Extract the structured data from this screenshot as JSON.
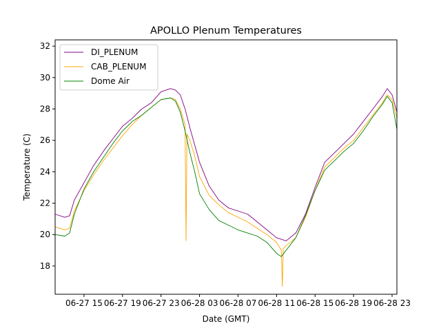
{
  "chart_data": {
    "type": "line",
    "title": "APOLLO Plenum Temperatures",
    "xlabel": "Date (GMT)",
    "ylabel": "Temperature (C)",
    "x_unit": "hours since 06-27 12:00 GMT",
    "xlim": [
      0,
      35.5
    ],
    "ylim": [
      16.2,
      32.4
    ],
    "x_ticks": [
      {
        "value": 3,
        "label": "06-27 15"
      },
      {
        "value": 7,
        "label": "06-27 19"
      },
      {
        "value": 11,
        "label": "06-27 23"
      },
      {
        "value": 15,
        "label": "06-28 03"
      },
      {
        "value": 19,
        "label": "06-28 07"
      },
      {
        "value": 23,
        "label": "06-28 11"
      },
      {
        "value": 27,
        "label": "06-28 15"
      },
      {
        "value": 31,
        "label": "06-28 19"
      },
      {
        "value": 35,
        "label": "06-28 23"
      }
    ],
    "y_ticks": [
      {
        "value": 18,
        "label": "18"
      },
      {
        "value": 20,
        "label": "20"
      },
      {
        "value": 22,
        "label": "22"
      },
      {
        "value": 24,
        "label": "24"
      },
      {
        "value": 26,
        "label": "26"
      },
      {
        "value": 28,
        "label": "28"
      },
      {
        "value": 30,
        "label": "30"
      },
      {
        "value": 32,
        "label": "32"
      }
    ],
    "grid": false,
    "legend_position": "top-left",
    "series": [
      {
        "name": "DI_PLENUM",
        "color": "#800080",
        "points": [
          [
            0,
            21.3
          ],
          [
            1,
            21.1
          ],
          [
            1.5,
            21.2
          ],
          [
            2,
            22.2
          ],
          [
            3,
            23.3
          ],
          [
            4,
            24.4
          ],
          [
            5,
            25.3
          ],
          [
            6,
            26.1
          ],
          [
            7,
            26.9
          ],
          [
            8,
            27.4
          ],
          [
            9,
            28.0
          ],
          [
            10,
            28.4
          ],
          [
            11,
            29.1
          ],
          [
            12,
            29.3
          ],
          [
            12.5,
            29.2
          ],
          [
            13,
            28.9
          ],
          [
            13.5,
            28.0
          ],
          [
            14,
            26.8
          ],
          [
            14.5,
            25.7
          ],
          [
            15,
            24.6
          ],
          [
            16,
            23.1
          ],
          [
            17,
            22.2
          ],
          [
            18,
            21.7
          ],
          [
            19,
            21.5
          ],
          [
            20,
            21.3
          ],
          [
            21,
            20.8
          ],
          [
            22,
            20.3
          ],
          [
            23,
            19.8
          ],
          [
            24,
            19.6
          ],
          [
            25,
            20.1
          ],
          [
            26,
            21.3
          ],
          [
            27,
            23.0
          ],
          [
            28,
            24.6
          ],
          [
            29,
            25.2
          ],
          [
            30,
            25.8
          ],
          [
            31,
            26.4
          ],
          [
            32,
            27.2
          ],
          [
            33,
            28.0
          ],
          [
            34,
            28.8
          ],
          [
            34.5,
            29.3
          ],
          [
            35,
            28.9
          ],
          [
            35.5,
            27.8
          ]
        ]
      },
      {
        "name": "CAB_PLENUM",
        "color": "#ffa500",
        "points": [
          [
            0,
            20.5
          ],
          [
            1,
            20.3
          ],
          [
            1.5,
            20.4
          ],
          [
            2,
            21.5
          ],
          [
            3,
            22.8
          ],
          [
            4,
            23.8
          ],
          [
            5,
            24.7
          ],
          [
            6,
            25.5
          ],
          [
            7,
            26.3
          ],
          [
            8,
            27.0
          ],
          [
            9,
            27.6
          ],
          [
            10,
            28.1
          ],
          [
            11,
            28.6
          ],
          [
            12,
            28.7
          ],
          [
            12.5,
            28.6
          ],
          [
            13,
            28.0
          ],
          [
            13.5,
            27.0
          ],
          [
            13.6,
            19.6
          ],
          [
            13.7,
            26.4
          ],
          [
            14,
            26.0
          ],
          [
            14.5,
            25.0
          ],
          [
            15,
            23.7
          ],
          [
            16,
            22.5
          ],
          [
            17,
            21.9
          ],
          [
            18,
            21.4
          ],
          [
            19,
            21.1
          ],
          [
            20,
            20.8
          ],
          [
            21,
            20.4
          ],
          [
            22,
            20.0
          ],
          [
            23,
            19.5
          ],
          [
            23.5,
            19.0
          ],
          [
            23.6,
            16.7
          ],
          [
            23.7,
            19.1
          ],
          [
            24,
            19.3
          ],
          [
            25,
            19.8
          ],
          [
            26,
            21.1
          ],
          [
            27,
            22.8
          ],
          [
            28,
            24.3
          ],
          [
            29,
            24.9
          ],
          [
            30,
            25.5
          ],
          [
            31,
            26.0
          ],
          [
            32,
            26.8
          ],
          [
            33,
            27.6
          ],
          [
            34,
            28.4
          ],
          [
            34.5,
            28.9
          ],
          [
            35,
            28.6
          ],
          [
            35.5,
            27.4
          ]
        ]
      },
      {
        "name": "Dome Air",
        "color": "#008000",
        "points": [
          [
            0,
            20.0
          ],
          [
            1,
            19.9
          ],
          [
            1.5,
            20.1
          ],
          [
            2,
            21.3
          ],
          [
            3,
            22.9
          ],
          [
            4,
            24.0
          ],
          [
            5,
            24.9
          ],
          [
            6,
            25.8
          ],
          [
            7,
            26.6
          ],
          [
            8,
            27.2
          ],
          [
            9,
            27.6
          ],
          [
            10,
            28.1
          ],
          [
            11,
            28.6
          ],
          [
            12,
            28.7
          ],
          [
            12.5,
            28.5
          ],
          [
            13,
            27.8
          ],
          [
            13.5,
            26.6
          ],
          [
            14,
            25.2
          ],
          [
            14.5,
            24.0
          ],
          [
            15,
            22.6
          ],
          [
            16,
            21.6
          ],
          [
            17,
            20.9
          ],
          [
            18,
            20.6
          ],
          [
            19,
            20.3
          ],
          [
            20,
            20.1
          ],
          [
            21,
            19.9
          ],
          [
            22,
            19.5
          ],
          [
            23,
            18.8
          ],
          [
            23.5,
            18.6
          ],
          [
            24,
            19.0
          ],
          [
            25,
            19.8
          ],
          [
            26,
            21.2
          ],
          [
            27,
            22.8
          ],
          [
            28,
            24.1
          ],
          [
            29,
            24.7
          ],
          [
            30,
            25.3
          ],
          [
            31,
            25.8
          ],
          [
            32,
            26.6
          ],
          [
            33,
            27.5
          ],
          [
            34,
            28.3
          ],
          [
            34.5,
            28.8
          ],
          [
            35,
            28.4
          ],
          [
            35.5,
            26.7
          ]
        ]
      }
    ]
  }
}
